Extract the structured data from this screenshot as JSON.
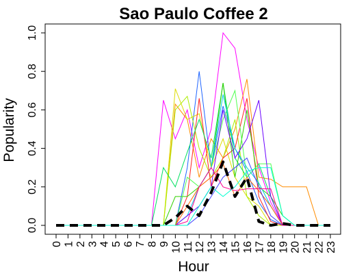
{
  "chart_data": {
    "type": "line",
    "title": "Sao Paulo Coffee 2",
    "xlabel": "Hour",
    "ylabel": "Popularity",
    "xlim": [
      0,
      23
    ],
    "ylim": [
      0,
      1
    ],
    "x_ticks": [
      "0",
      "1",
      "2",
      "3",
      "4",
      "5",
      "6",
      "7",
      "8",
      "9",
      "10",
      "11",
      "12",
      "13",
      "14",
      "15",
      "16",
      "17",
      "18",
      "19",
      "20",
      "21",
      "22",
      "23"
    ],
    "y_ticks": [
      "0.0",
      "0.2",
      "0.4",
      "0.6",
      "0.8",
      "1.0"
    ],
    "grid": false,
    "legend": "none",
    "hours": [
      0,
      1,
      2,
      3,
      4,
      5,
      6,
      7,
      8,
      9,
      10,
      11,
      12,
      13,
      14,
      15,
      16,
      17,
      18,
      19,
      20,
      21,
      22,
      23
    ],
    "series": [
      {
        "color": "#ff00ff",
        "values": [
          0,
          0,
          0,
          0,
          0,
          0,
          0,
          0,
          0,
          0.65,
          0.45,
          0.6,
          0.3,
          0.5,
          1.0,
          0.92,
          0.55,
          0.3,
          0.12,
          0,
          0,
          0,
          0,
          0
        ]
      },
      {
        "color": "#ff8c00",
        "values": [
          0,
          0,
          0,
          0,
          0,
          0,
          0,
          0,
          0,
          0,
          0.63,
          0.55,
          0.25,
          0.45,
          0.35,
          0.5,
          0.76,
          0.25,
          0.24,
          0.2,
          0.2,
          0.2,
          0,
          0
        ]
      },
      {
        "color": "#1e64ff",
        "values": [
          0,
          0,
          0,
          0,
          0,
          0,
          0,
          0,
          0,
          0,
          0,
          0.3,
          0.8,
          0.3,
          0.62,
          0.4,
          0.28,
          0.12,
          0.03,
          0,
          0,
          0,
          0,
          0
        ]
      },
      {
        "color": "#dcdc00",
        "values": [
          0,
          0,
          0,
          0,
          0,
          0,
          0,
          0,
          0,
          0,
          0.71,
          0.55,
          0.58,
          0.3,
          0.45,
          0.25,
          0.15,
          0.1,
          0,
          0,
          0,
          0,
          0,
          0
        ]
      },
      {
        "color": "#aaee00",
        "values": [
          0,
          0,
          0,
          0,
          0,
          0,
          0,
          0,
          0,
          0,
          0.6,
          0.67,
          0.4,
          0.25,
          0.35,
          0.55,
          0.15,
          0.05,
          0,
          0,
          0,
          0,
          0,
          0
        ]
      },
      {
        "color": "#ff2020",
        "values": [
          0,
          0,
          0,
          0,
          0,
          0,
          0,
          0,
          0,
          0,
          0,
          0.15,
          0.66,
          0.2,
          0.35,
          0.4,
          0.66,
          0.15,
          0.02,
          0,
          0,
          0,
          0,
          0
        ]
      },
      {
        "color": "#00e060",
        "values": [
          0,
          0,
          0,
          0,
          0,
          0,
          0,
          0,
          0,
          0.3,
          0.2,
          0.38,
          0.55,
          0.35,
          0.74,
          0.35,
          0.25,
          0.32,
          0.15,
          0,
          0,
          0,
          0,
          0
        ]
      },
      {
        "color": "#30d000",
        "values": [
          0,
          0,
          0,
          0,
          0,
          0,
          0,
          0,
          0,
          0,
          0.15,
          0.15,
          0.2,
          0.3,
          0.74,
          0.25,
          0.6,
          0.2,
          0.15,
          0.05,
          0,
          0,
          0,
          0
        ]
      },
      {
        "color": "#50ff50",
        "values": [
          0,
          0,
          0,
          0,
          0,
          0,
          0,
          0,
          0,
          0,
          0,
          0.25,
          0.2,
          0.3,
          0.55,
          0.7,
          0.25,
          0.32,
          0.32,
          0.05,
          0,
          0,
          0,
          0
        ]
      },
      {
        "color": "#00c8e0",
        "values": [
          0,
          0,
          0,
          0,
          0,
          0,
          0,
          0,
          0,
          0,
          0,
          0.05,
          0.2,
          0.3,
          0.68,
          0.4,
          0.3,
          0.22,
          0.1,
          0,
          0,
          0,
          0,
          0
        ]
      },
      {
        "color": "#6a00ff",
        "values": [
          0,
          0,
          0,
          0,
          0,
          0,
          0,
          0,
          0,
          0,
          0,
          0.05,
          0.1,
          0.2,
          0.6,
          0.35,
          0.45,
          0.65,
          0.15,
          0,
          0,
          0,
          0,
          0
        ]
      },
      {
        "color": "#ff6600",
        "values": [
          0,
          0,
          0,
          0,
          0,
          0,
          0,
          0,
          0,
          0,
          0,
          0.1,
          0.2,
          0.25,
          0.32,
          0.15,
          0.25,
          0.18,
          0.1,
          0,
          0,
          0,
          0,
          0
        ]
      },
      {
        "color": "#4040ff",
        "values": [
          0,
          0,
          0,
          0,
          0,
          0,
          0,
          0,
          0,
          0,
          0,
          0,
          0.05,
          0.15,
          0.25,
          0.3,
          0.35,
          0.2,
          0.05,
          0,
          0,
          0,
          0,
          0
        ]
      },
      {
        "color": "#ff0090",
        "values": [
          0,
          0,
          0,
          0,
          0,
          0,
          0,
          0,
          0,
          0,
          0,
          0.02,
          0.2,
          0.3,
          0.2,
          0.18,
          0.19,
          0.19,
          0.19,
          0,
          0,
          0,
          0,
          0
        ]
      },
      {
        "color": "#00ffd0",
        "values": [
          0,
          0,
          0,
          0,
          0,
          0,
          0,
          0,
          0,
          0,
          0,
          0,
          0.1,
          0.2,
          0.15,
          0.2,
          0.28,
          0.3,
          0.3,
          0.05,
          0,
          0,
          0,
          0
        ]
      }
    ],
    "mean_series": {
      "color": "#000000",
      "values": [
        0,
        0,
        0,
        0,
        0,
        0,
        0,
        0,
        0,
        0,
        0.04,
        0.1,
        0.05,
        0.17,
        0.33,
        0.15,
        0.25,
        0.02,
        0,
        0.01,
        0,
        0,
        0,
        0
      ]
    }
  }
}
